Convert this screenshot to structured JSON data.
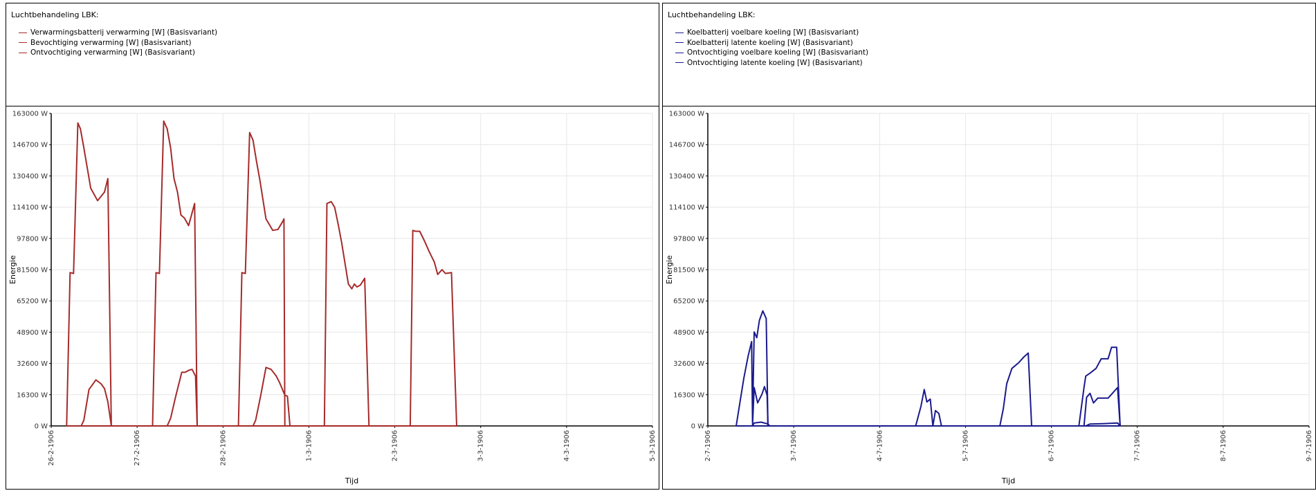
{
  "panels": [
    {
      "title": "Luchtbehandeling LBK:",
      "legend": [
        {
          "label": "Verwarmingsbatterij verwarming [W] (Basisvariant)",
          "color": "#a52a2a"
        },
        {
          "label": "Bevochtiging verwarming [W] (Basisvariant)",
          "color": "#a52a2a"
        },
        {
          "label": "Ontvochtiging verwarming [W] (Basisvariant)",
          "color": "#a52a2a"
        }
      ]
    },
    {
      "title": "Luchtbehandeling LBK:",
      "legend": [
        {
          "label": "Koelbatterij voelbare koeling [W] (Basisvariant)",
          "color": "#1a1a8c"
        },
        {
          "label": "Koelbatterij latente koeling [W] (Basisvariant)",
          "color": "#1a1a8c"
        },
        {
          "label": "Ontvochtiging voelbare koeling [W] (Basisvariant)",
          "color": "#1a1a8c"
        },
        {
          "label": "Ontvochtiging latente koeling [W] (Basisvariant)",
          "color": "#1a1a8c"
        }
      ]
    }
  ],
  "chart_data": [
    {
      "type": "line",
      "xlabel": "Tijd",
      "ylabel": "Energie",
      "ylim": [
        0,
        163000
      ],
      "xlim": [
        0,
        7
      ],
      "grid": true,
      "x_ticks": [
        "26-2-1906",
        "27-2-1906",
        "28-2-1906",
        "1-3-1906",
        "2-3-1906",
        "3-3-1906",
        "4-3-1906",
        "5-3-1906"
      ],
      "y_ticks": [
        "0 W",
        "16300 W",
        "32600 W",
        "48900 W",
        "65200 W",
        "81500 W",
        "97800 W",
        "114100 W",
        "130400 W",
        "146700 W",
        "163000 W"
      ],
      "color": "#a52a2a",
      "series": [
        {
          "name": "Verwarmingsbatterij verwarming [W] (Basisvariant)",
          "points": [
            [
              0.18,
              0
            ],
            [
              0.22,
              80000
            ],
            [
              0.26,
              79500
            ],
            [
              0.31,
              158000
            ],
            [
              0.34,
              155000
            ],
            [
              0.38,
              145000
            ],
            [
              0.46,
              124000
            ],
            [
              0.54,
              117500
            ],
            [
              0.62,
              122000
            ],
            [
              0.66,
              129000
            ],
            [
              0.7,
              0
            ],
            [
              1.18,
              0
            ],
            [
              1.22,
              80000
            ],
            [
              1.26,
              79500
            ],
            [
              1.31,
              159000
            ],
            [
              1.35,
              155000
            ],
            [
              1.39,
              145000
            ],
            [
              1.43,
              129000
            ],
            [
              1.47,
              122000
            ],
            [
              1.51,
              110000
            ],
            [
              1.55,
              108500
            ],
            [
              1.6,
              104500
            ],
            [
              1.67,
              116000
            ],
            [
              1.7,
              0
            ],
            [
              2.18,
              0
            ],
            [
              2.22,
              80000
            ],
            [
              2.26,
              79500
            ],
            [
              2.31,
              153000
            ],
            [
              2.35,
              149000
            ],
            [
              2.39,
              138000
            ],
            [
              2.43,
              128000
            ],
            [
              2.5,
              108000
            ],
            [
              2.58,
              102000
            ],
            [
              2.64,
              102500
            ],
            [
              2.7,
              107000
            ],
            [
              2.71,
              108000
            ],
            [
              2.72,
              0
            ],
            [
              3.18,
              0
            ],
            [
              3.21,
              116000
            ],
            [
              3.26,
              117000
            ],
            [
              3.3,
              114000
            ],
            [
              3.34,
              105500
            ],
            [
              3.38,
              96000
            ],
            [
              3.46,
              74000
            ],
            [
              3.5,
              71500
            ],
            [
              3.53,
              74000
            ],
            [
              3.56,
              72500
            ],
            [
              3.6,
              73500
            ],
            [
              3.65,
              77000
            ],
            [
              3.7,
              0
            ],
            [
              4.18,
              0
            ],
            [
              4.21,
              102000
            ],
            [
              4.24,
              101500
            ],
            [
              4.29,
              101500
            ],
            [
              4.34,
              97000
            ],
            [
              4.4,
              91000
            ],
            [
              4.46,
              85500
            ],
            [
              4.5,
              79000
            ],
            [
              4.55,
              81500
            ],
            [
              4.59,
              79500
            ],
            [
              4.66,
              80000
            ],
            [
              4.72,
              0
            ]
          ]
        },
        {
          "name": "Bevochtiging verwarming [W] (Basisvariant)",
          "points": [
            [
              0.35,
              0
            ],
            [
              0.38,
              3000
            ],
            [
              0.44,
              19000
            ],
            [
              0.52,
              24000
            ],
            [
              0.58,
              22000
            ],
            [
              0.62,
              19500
            ],
            [
              0.66,
              12500
            ],
            [
              0.7,
              0
            ],
            [
              1.35,
              0
            ],
            [
              1.39,
              4000
            ],
            [
              1.45,
              15500
            ],
            [
              1.52,
              28000
            ],
            [
              1.56,
              28000
            ],
            [
              1.6,
              29000
            ],
            [
              1.64,
              29500
            ],
            [
              1.68,
              26000
            ],
            [
              1.7,
              0
            ],
            [
              2.35,
              0
            ],
            [
              2.38,
              3000
            ],
            [
              2.44,
              16000
            ],
            [
              2.5,
              30500
            ],
            [
              2.56,
              29500
            ],
            [
              2.62,
              26000
            ],
            [
              2.66,
              22500
            ],
            [
              2.72,
              16000
            ],
            [
              2.75,
              15500
            ],
            [
              2.78,
              0
            ]
          ]
        },
        {
          "name": "Ontvochtiging verwarming [W] (Basisvariant)",
          "points": [
            [
              0.18,
              0
            ],
            [
              4.72,
              0
            ]
          ]
        }
      ]
    },
    {
      "type": "line",
      "xlabel": "Tijd",
      "ylabel": "Energie",
      "ylim": [
        0,
        163000
      ],
      "xlim": [
        0,
        7
      ],
      "grid": true,
      "x_ticks": [
        "2-7-1906",
        "3-7-1906",
        "4-7-1906",
        "5-7-1906",
        "6-7-1906",
        "7-7-1906",
        "8-7-1906",
        "9-7-1906"
      ],
      "y_ticks": [
        "0 W",
        "16300 W",
        "32600 W",
        "48900 W",
        "65200 W",
        "81500 W",
        "97800 W",
        "114100 W",
        "130400 W",
        "146700 W",
        "163000 W"
      ],
      "color": "#1a1a8c",
      "series": [
        {
          "name": "Koelbatterij voelbare koeling [W] (Basisvariant)",
          "points": [
            [
              0.33,
              0
            ],
            [
              0.38,
              14000
            ],
            [
              0.42,
              25000
            ],
            [
              0.47,
              36500
            ],
            [
              0.51,
              44000
            ],
            [
              0.52,
              2000
            ],
            [
              0.54,
              49000
            ],
            [
              0.57,
              46000
            ],
            [
              0.6,
              55000
            ],
            [
              0.64,
              60000
            ],
            [
              0.68,
              56000
            ],
            [
              0.7,
              0
            ],
            [
              2.42,
              0
            ],
            [
              2.48,
              10000
            ],
            [
              2.52,
              19000
            ],
            [
              2.55,
              12500
            ],
            [
              2.59,
              14000
            ],
            [
              2.62,
              0
            ],
            [
              2.65,
              8000
            ],
            [
              2.69,
              6500
            ],
            [
              2.72,
              0
            ],
            [
              3.4,
              0
            ],
            [
              3.44,
              9000
            ],
            [
              3.48,
              22000
            ],
            [
              3.54,
              30000
            ],
            [
              3.62,
              33000
            ],
            [
              3.68,
              36000
            ],
            [
              3.73,
              38000
            ],
            [
              3.77,
              0
            ],
            [
              4.32,
              0
            ],
            [
              4.38,
              20000
            ],
            [
              4.4,
              26000
            ],
            [
              4.45,
              27500
            ],
            [
              4.52,
              30000
            ],
            [
              4.58,
              35000
            ],
            [
              4.66,
              35000
            ],
            [
              4.7,
              41000
            ],
            [
              4.76,
              41000
            ],
            [
              4.8,
              0
            ]
          ]
        },
        {
          "name": "Koelbatterij latente koeling [W] (Basisvariant)",
          "points": [
            [
              0.52,
              0
            ],
            [
              0.54,
              20000
            ],
            [
              0.58,
              12000
            ],
            [
              0.63,
              16500
            ],
            [
              0.66,
              20500
            ],
            [
              0.69,
              16000
            ],
            [
              0.7,
              0
            ],
            [
              4.38,
              0
            ],
            [
              4.41,
              15000
            ],
            [
              4.45,
              17000
            ],
            [
              4.49,
              12000
            ],
            [
              4.54,
              14500
            ],
            [
              4.66,
              14500
            ],
            [
              4.77,
              20000
            ],
            [
              4.8,
              0
            ]
          ]
        },
        {
          "name": "Ontvochtiging voelbare koeling [W] (Basisvariant)",
          "points": [
            [
              0.52,
              0
            ],
            [
              0.54,
              1500
            ],
            [
              0.62,
              2000
            ],
            [
              0.7,
              1000
            ],
            [
              0.72,
              0
            ],
            [
              4.4,
              0
            ],
            [
              4.45,
              1000
            ],
            [
              4.6,
              1200
            ],
            [
              4.77,
              1500
            ],
            [
              4.8,
              0
            ]
          ]
        },
        {
          "name": "Ontvochtiging latente koeling [W] (Basisvariant)",
          "points": [
            [
              0.33,
              0
            ],
            [
              4.8,
              0
            ]
          ]
        }
      ]
    }
  ]
}
